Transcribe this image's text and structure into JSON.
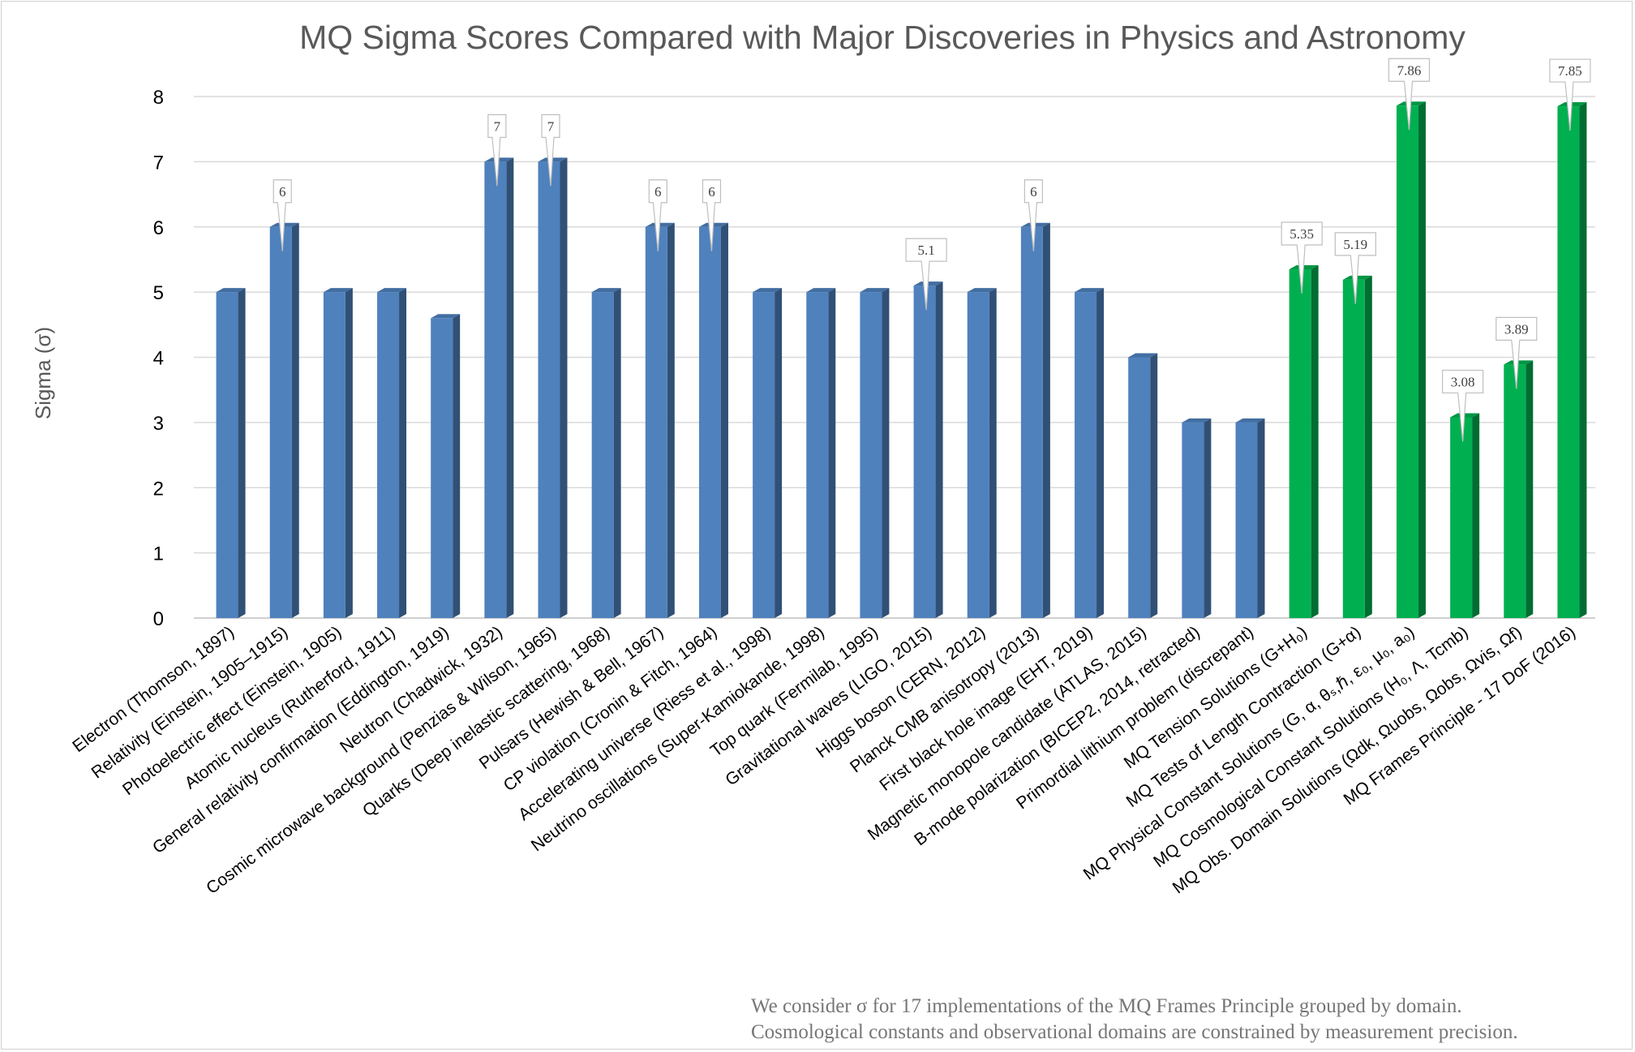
{
  "chart_data": {
    "type": "bar",
    "title": "MQ Sigma Scores Compared with Major Discoveries in Physics and Astronomy",
    "xlabel": "",
    "ylabel": "Sigma (σ)",
    "ylim": [
      0,
      8
    ],
    "yticks": [
      "0",
      "1",
      "2",
      "3",
      "4",
      "5",
      "6",
      "7",
      "8"
    ],
    "grid": true,
    "legend": "none",
    "colors": {
      "historical": "#4f81bd",
      "mq": "#00b050"
    },
    "categories": [
      "Electron (Thomson, 1897)",
      "Relativity (Einstein, 1905–1915)",
      "Photoelectric effect (Einstein, 1905)",
      "Atomic nucleus (Rutherford, 1911)",
      "General relativity confirmation (Eddington, 1919)",
      "Neutron (Chadwick, 1932)",
      "Cosmic microwave background (Penzias & Wilson, 1965)",
      "Quarks (Deep inelastic scattering, 1968)",
      "Pulsars (Hewish & Bell, 1967)",
      "CP violation (Cronin & Fitch, 1964)",
      "Accelerating universe (Riess et al., 1998)",
      "Neutrino oscillations (Super-Kamiokande, 1998)",
      "Top quark (Fermilab, 1995)",
      "Gravitational waves (LIGO, 2015)",
      "Higgs boson (CERN, 2012)",
      "Planck CMB anisotropy (2013)",
      "First black hole image (EHT, 2019)",
      "Magnetic monopole candidate (ATLAS, 2015)",
      "B-mode polarization (BICEP2, 2014, retracted)",
      "Primordial lithium problem (discrepant)",
      "MQ Tension Solutions (G+H₀)",
      "MQ Tests of Length Contraction (G+α)",
      "MQ Physical Constant Solutions (G, α, θₛ,ℏ, ε₀, μ₀, a₀)",
      "MQ Cosmological Constant Solutions (H₀, Λ, Tcmb)",
      "MQ Obs. Domain Solutions (Ωdk, Ωuobs, Ωobs, Ωvis, Ωf)",
      "MQ Frames Principle - 17 DoF (2016)"
    ],
    "values": [
      5,
      6,
      5,
      5,
      4.6,
      7,
      7,
      5,
      6,
      6,
      5,
      5,
      5,
      5.1,
      5,
      6,
      5,
      4,
      3,
      3,
      5.35,
      5.19,
      7.86,
      3.08,
      3.89,
      7.85
    ],
    "groups": [
      "historical",
      "historical",
      "historical",
      "historical",
      "historical",
      "historical",
      "historical",
      "historical",
      "historical",
      "historical",
      "historical",
      "historical",
      "historical",
      "historical",
      "historical",
      "historical",
      "historical",
      "historical",
      "historical",
      "historical",
      "mq",
      "mq",
      "mq",
      "mq",
      "mq",
      "mq"
    ],
    "data_labels": [
      null,
      "6",
      null,
      null,
      null,
      "7",
      "7",
      null,
      "6",
      "6",
      null,
      null,
      null,
      "5.1",
      null,
      "6",
      null,
      null,
      null,
      null,
      "5.35",
      "5.19",
      "7.86",
      "3.08",
      "3.89",
      "7.85"
    ],
    "footnote": [
      "We consider σ for 17 implementations of the MQ Frames Principle grouped by domain.",
      "Cosmological constants and observational domains are constrained by measurement precision."
    ]
  }
}
